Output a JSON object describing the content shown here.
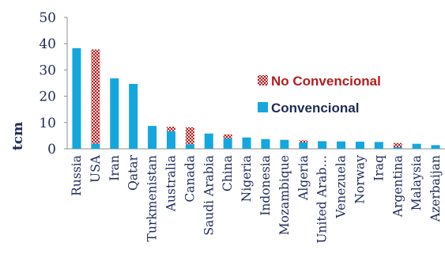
{
  "chart_data": {
    "type": "bar",
    "stacked": true,
    "ylabel": "tcm",
    "ylim": [
      0,
      50
    ],
    "yticks": [
      0,
      10,
      20,
      30,
      40,
      50
    ],
    "grid": false,
    "legend_position": "right",
    "categories": [
      "Russia",
      "USA",
      "Iran",
      "Qatar",
      "Turkmenistan",
      "Australia",
      "Canada",
      "Saudi Arabia",
      "China",
      "Nigeria",
      "Indonesia",
      "Mozambique",
      "Algeria",
      "United Arab…",
      "Venezuela",
      "Norway",
      "Iraq",
      "Argentina",
      "Malaysia",
      "Azerbaijan"
    ],
    "series": [
      {
        "name": "Convencional",
        "color": "#14a7dd",
        "values": [
          38.3,
          2.0,
          26.8,
          24.7,
          8.7,
          6.7,
          1.7,
          5.8,
          3.9,
          4.3,
          3.7,
          3.4,
          2.4,
          2.9,
          2.8,
          2.7,
          2.6,
          0.6,
          1.9,
          1.4
        ]
      },
      {
        "name": "No Convencional",
        "color": "#b31e1e",
        "pattern": "dotted",
        "values": [
          0,
          35.8,
          0,
          0,
          0,
          1.7,
          6.5,
          0,
          1.6,
          0,
          0,
          0,
          0.8,
          0,
          0,
          0,
          0,
          1.6,
          0,
          0
        ]
      }
    ],
    "legend": [
      "No Convencional",
      "Convencional"
    ]
  }
}
